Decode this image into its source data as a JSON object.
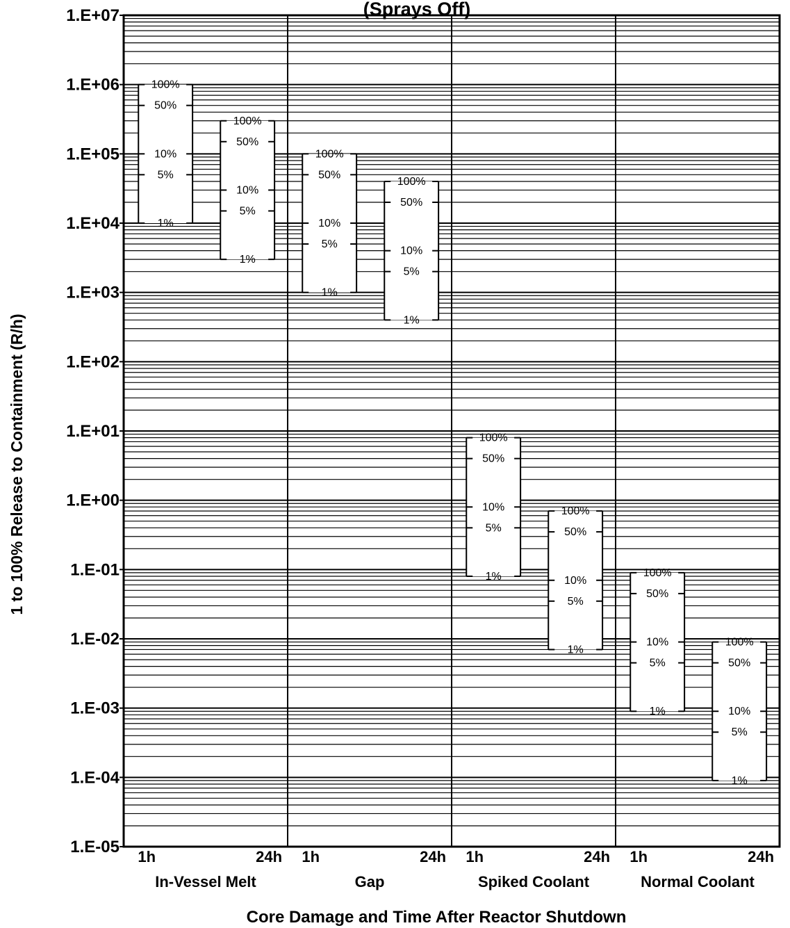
{
  "chart_data": {
    "type": "range",
    "title": "(Sprays Off)",
    "xlabel": "Core Damage and Time After Reactor Shutdown",
    "ylabel": "1 to 100% Release to Containment (R/h)",
    "yscale": "log",
    "ylim": [
      1e-05,
      10000000
    ],
    "yticks": [
      "1.E+07",
      "1.E+06",
      "1.E+05",
      "1.E+04",
      "1.E+03",
      "1.E+02",
      "1.E+01",
      "1.E+00",
      "1.E-01",
      "1.E-02",
      "1.E-03",
      "1.E-04",
      "1.E-05"
    ],
    "groups": [
      {
        "name": "In-Vessel Melt",
        "time_labels": [
          "1h",
          "24h"
        ],
        "bars": [
          {
            "time": "1h",
            "values": {
              "100%": 1000000,
              "50%": 500000,
              "10%": 100000,
              "5%": 50000,
              "1%": 10000
            }
          },
          {
            "time": "24h",
            "values": {
              "100%": 300000,
              "50%": 150000,
              "10%": 30000,
              "5%": 15000,
              "1%": 3000
            }
          }
        ]
      },
      {
        "name": "Gap",
        "time_labels": [
          "1h",
          "24h"
        ],
        "bars": [
          {
            "time": "1h",
            "values": {
              "100%": 100000,
              "50%": 50000,
              "10%": 10000,
              "5%": 5000,
              "1%": 1000
            }
          },
          {
            "time": "24h",
            "values": {
              "100%": 40000,
              "50%": 20000,
              "10%": 4000,
              "5%": 2000,
              "1%": 400
            }
          }
        ]
      },
      {
        "name": "Spiked Coolant",
        "time_labels": [
          "1h",
          "24h"
        ],
        "bars": [
          {
            "time": "1h",
            "values": {
              "100%": 8,
              "50%": 4,
              "10%": 0.8,
              "5%": 0.4,
              "1%": 0.08
            }
          },
          {
            "time": "24h",
            "values": {
              "100%": 0.7,
              "50%": 0.35,
              "10%": 0.07,
              "5%": 0.035,
              "1%": 0.007
            }
          }
        ]
      },
      {
        "name": "Normal Coolant",
        "time_labels": [
          "1h",
          "24h"
        ],
        "bars": [
          {
            "time": "1h",
            "values": {
              "100%": 0.09,
              "50%": 0.045,
              "10%": 0.009,
              "5%": 0.0045,
              "1%": 0.0009
            }
          },
          {
            "time": "24h",
            "values": {
              "100%": 0.009,
              "50%": 0.0045,
              "10%": 0.0009,
              "5%": 0.00045,
              "1%": 9e-05
            }
          }
        ]
      }
    ],
    "grid": true
  }
}
